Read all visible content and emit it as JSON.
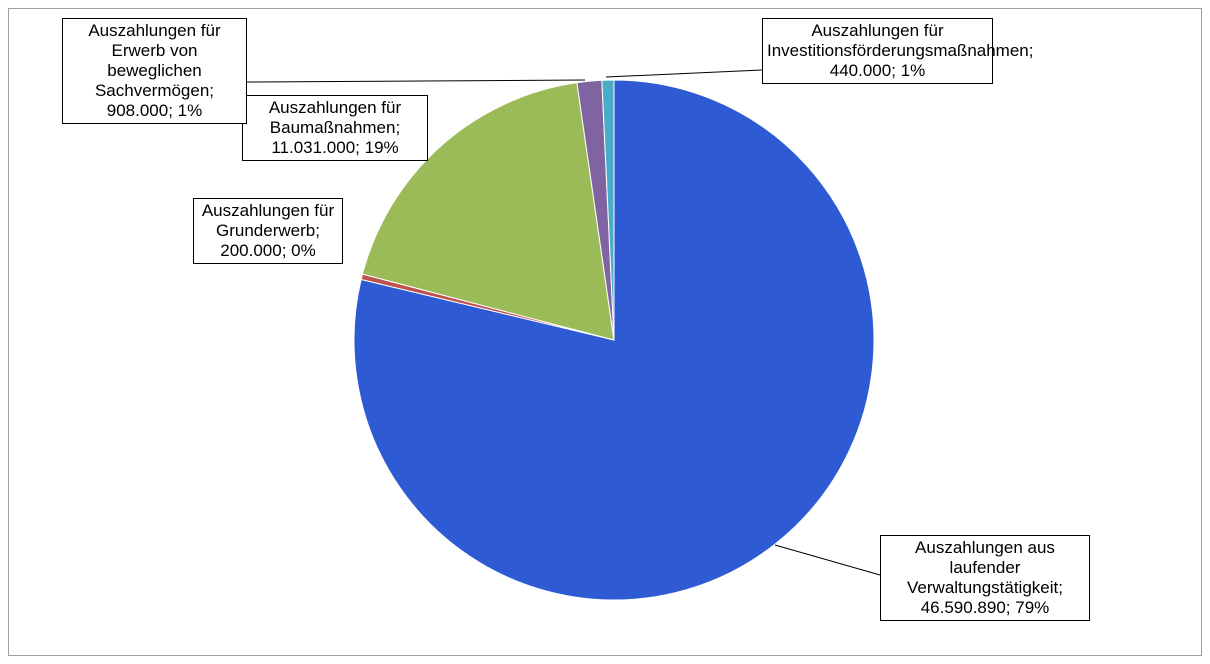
{
  "chart_data": {
    "type": "pie",
    "categories": [
      "Auszahlungen aus laufender Verwaltungstätigkeit",
      "Auszahlungen für Grunderwerb",
      "Auszahlungen für Baumaßnahmen",
      "Auszahlungen für Erwerb von beweglichen Sachvermögen",
      "Auszahlungen für Investitionsförderungsmaßnahmen"
    ],
    "values": [
      46590890,
      200000,
      11031000,
      908000,
      440000
    ],
    "value_labels": [
      "46.590.890",
      "200.000",
      "11.031.000",
      "908.000",
      "440.000"
    ],
    "percent_labels": [
      "79%",
      "0%",
      "19%",
      "1%",
      "1%"
    ],
    "label_separator": "; ",
    "colors": [
      "#2e5bd4",
      "#c0504d",
      "#9bbb59",
      "#8064a2",
      "#4bacc6"
    ]
  }
}
